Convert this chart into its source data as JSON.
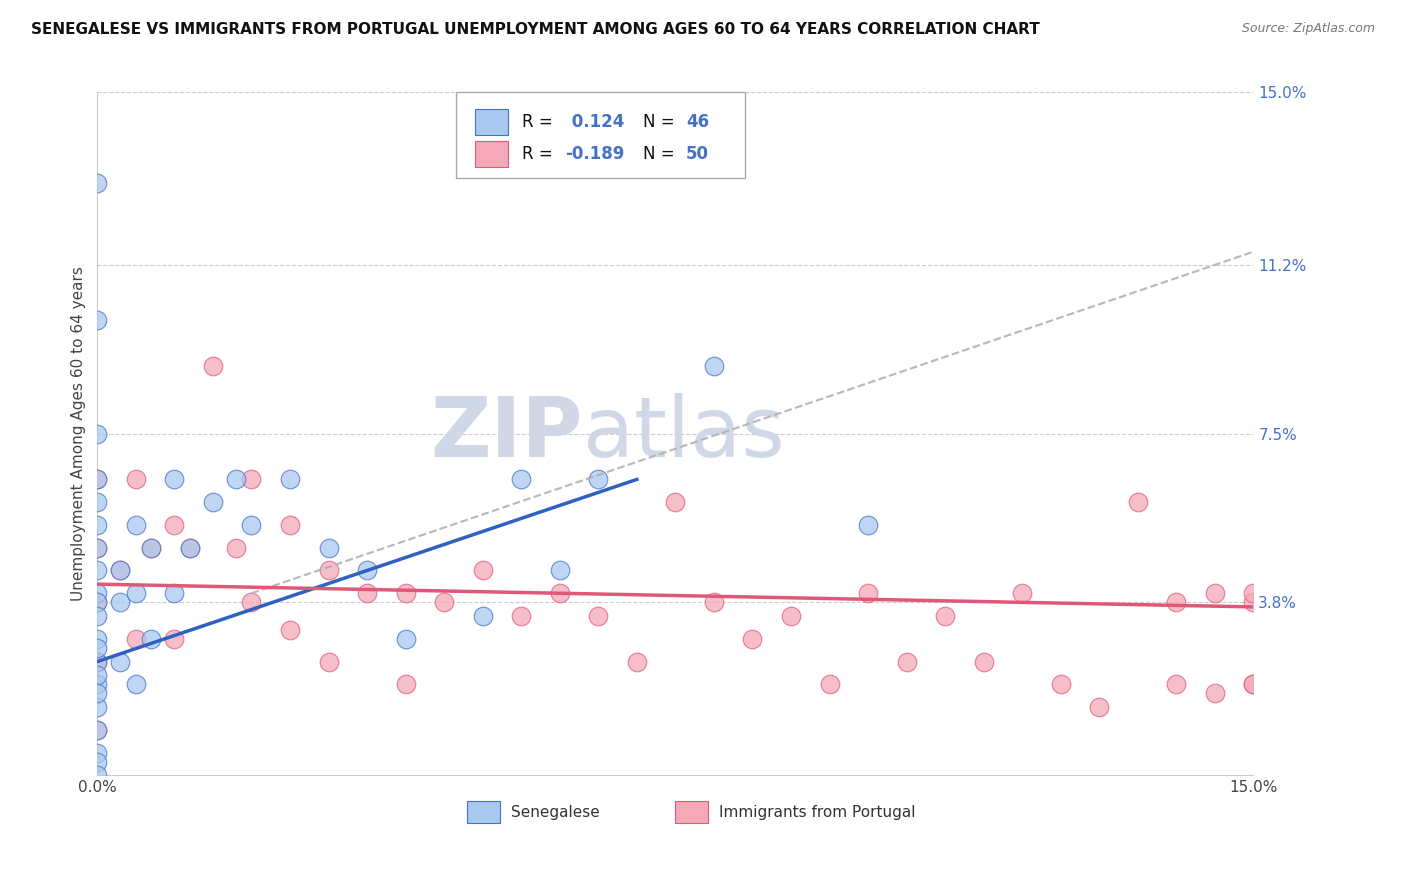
{
  "title": "SENEGALESE VS IMMIGRANTS FROM PORTUGAL UNEMPLOYMENT AMONG AGES 60 TO 64 YEARS CORRELATION CHART",
  "source": "Source: ZipAtlas.com",
  "ylabel": "Unemployment Among Ages 60 to 64 years",
  "xlim": [
    0.0,
    0.15
  ],
  "ylim": [
    0.0,
    0.15
  ],
  "ytick_labels_right": [
    "15.0%",
    "11.2%",
    "7.5%",
    "3.8%"
  ],
  "ytick_positions_right": [
    0.15,
    0.112,
    0.075,
    0.038
  ],
  "legend_r1": "R =",
  "legend_v1": " 0.124",
  "legend_n1_label": "N =",
  "legend_n1_val": "46",
  "legend_r2": "R =",
  "legend_v2": "-0.189",
  "legend_n2_label": "N =",
  "legend_n2_val": "50",
  "color_blue": "#a8c8f0",
  "color_pink": "#f4a8b8",
  "line_color_blue": "#3060c0",
  "line_color_pink": "#e05878",
  "line_color_gray": "#b0b0b0",
  "text_color_blue": "#4472c4",
  "background_color": "#ffffff",
  "watermark_color": "#d0d8e8",
  "blue_line_x": [
    0.0,
    0.07
  ],
  "blue_line_y": [
    0.025,
    0.065
  ],
  "pink_line_x": [
    0.0,
    0.15
  ],
  "pink_line_y": [
    0.042,
    0.037
  ],
  "gray_line_x": [
    0.02,
    0.15
  ],
  "gray_line_y": [
    0.04,
    0.115
  ],
  "senegalese_x": [
    0.0,
    0.0,
    0.0,
    0.0,
    0.0,
    0.0,
    0.0,
    0.0,
    0.0,
    0.0,
    0.0,
    0.0,
    0.0,
    0.0,
    0.0,
    0.0,
    0.0,
    0.0,
    0.0,
    0.0,
    0.0,
    0.003,
    0.003,
    0.003,
    0.005,
    0.005,
    0.005,
    0.007,
    0.007,
    0.01,
    0.01,
    0.012,
    0.015,
    0.018,
    0.02,
    0.025,
    0.03,
    0.035,
    0.04,
    0.05,
    0.055,
    0.06,
    0.065,
    0.08,
    0.1,
    0.0
  ],
  "senegalese_y": [
    0.13,
    0.1,
    0.075,
    0.065,
    0.06,
    0.055,
    0.05,
    0.045,
    0.04,
    0.038,
    0.035,
    0.03,
    0.025,
    0.02,
    0.015,
    0.01,
    0.005,
    0.003,
    0.0,
    0.028,
    0.022,
    0.045,
    0.038,
    0.025,
    0.055,
    0.04,
    0.02,
    0.05,
    0.03,
    0.065,
    0.04,
    0.05,
    0.06,
    0.065,
    0.055,
    0.065,
    0.05,
    0.045,
    0.03,
    0.035,
    0.065,
    0.045,
    0.065,
    0.09,
    0.055,
    0.018
  ],
  "portugal_x": [
    0.0,
    0.0,
    0.0,
    0.0,
    0.0,
    0.003,
    0.005,
    0.005,
    0.007,
    0.01,
    0.01,
    0.012,
    0.015,
    0.018,
    0.02,
    0.02,
    0.025,
    0.025,
    0.03,
    0.03,
    0.035,
    0.04,
    0.04,
    0.045,
    0.05,
    0.055,
    0.06,
    0.065,
    0.07,
    0.075,
    0.08,
    0.085,
    0.09,
    0.095,
    0.1,
    0.105,
    0.11,
    0.115,
    0.12,
    0.125,
    0.13,
    0.135,
    0.14,
    0.14,
    0.145,
    0.145,
    0.15,
    0.15,
    0.15,
    0.15
  ],
  "portugal_y": [
    0.065,
    0.05,
    0.038,
    0.025,
    0.01,
    0.045,
    0.065,
    0.03,
    0.05,
    0.055,
    0.03,
    0.05,
    0.09,
    0.05,
    0.065,
    0.038,
    0.055,
    0.032,
    0.045,
    0.025,
    0.04,
    0.04,
    0.02,
    0.038,
    0.045,
    0.035,
    0.04,
    0.035,
    0.025,
    0.06,
    0.038,
    0.03,
    0.035,
    0.02,
    0.04,
    0.025,
    0.035,
    0.025,
    0.04,
    0.02,
    0.015,
    0.06,
    0.038,
    0.02,
    0.04,
    0.018,
    0.038,
    0.02,
    0.04,
    0.02
  ]
}
